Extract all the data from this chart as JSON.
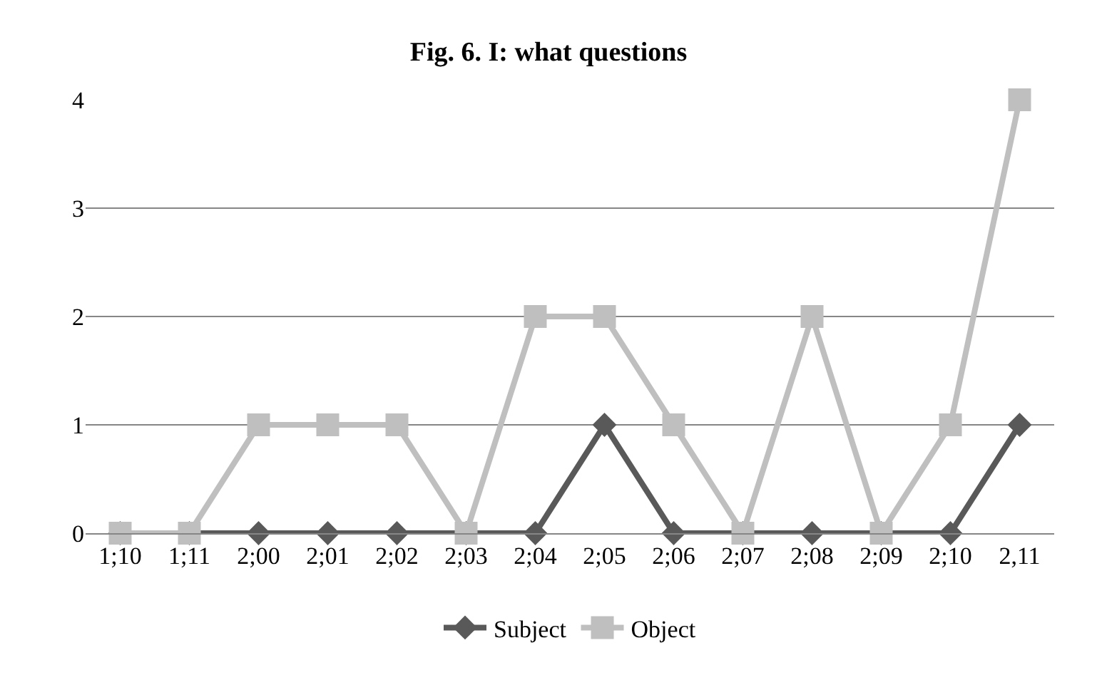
{
  "chart_data": {
    "type": "line",
    "title": "Fig. 6. I: what questions",
    "categories": [
      "1;10",
      "1;11",
      "2;00",
      "2;01",
      "2;02",
      "2;03",
      "2;04",
      "2;05",
      "2;06",
      "2;07",
      "2;08",
      "2;09",
      "2;10",
      "2,11"
    ],
    "series": [
      {
        "name": "Subject",
        "color": "#595959",
        "marker": "diamond",
        "values": [
          0,
          0,
          0,
          0,
          0,
          0,
          0,
          1,
          0,
          0,
          0,
          0,
          0,
          1
        ]
      },
      {
        "name": "Object",
        "color": "#bfbfbf",
        "marker": "square",
        "values": [
          0,
          0,
          1,
          1,
          1,
          0,
          2,
          2,
          1,
          0,
          2,
          0,
          1,
          4
        ]
      }
    ],
    "ylim": [
      0,
      4
    ],
    "yticks": [
      0,
      1,
      2,
      3,
      4
    ],
    "grid": "y",
    "legend": "bottom",
    "line_style": "solid"
  }
}
